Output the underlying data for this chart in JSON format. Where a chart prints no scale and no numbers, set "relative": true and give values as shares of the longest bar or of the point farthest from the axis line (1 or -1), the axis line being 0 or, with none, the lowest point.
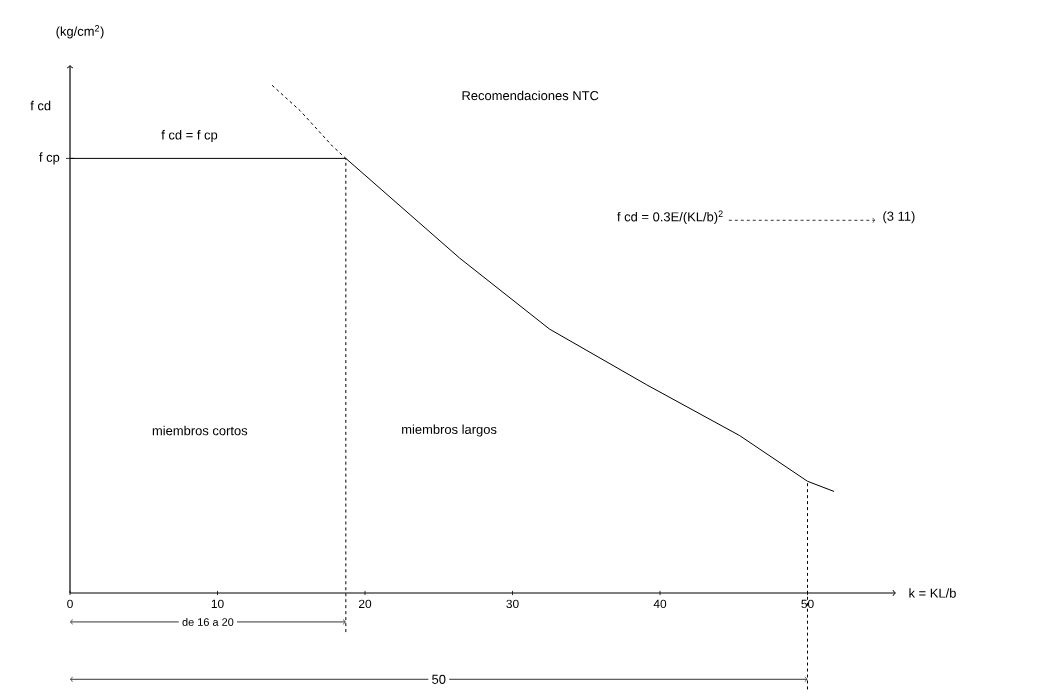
{
  "chart_data": {
    "type": "line",
    "relative": true,
    "xlabel": "k = KL/b",
    "ylabel": "(kg/cm$^{2}$)",
    "xlim": [
      0,
      56
    ],
    "xticks": [
      0,
      10,
      20,
      30,
      40,
      50
    ],
    "series": [
      {
        "color": "#000000",
        "line_style": "solid",
        "x": [
          0,
          18.7
        ],
        "values": [
          0.856,
          0.856
        ]
      },
      {
        "color": "#000000",
        "line_style": "dashed",
        "x": [
          13.7,
          15.6,
          17.8,
          18.7
        ],
        "values": [
          1.0,
          0.95,
          0.88,
          0.856
        ]
      },
      {
        "color": "#000000",
        "line_style": "solid",
        "x": [
          18.7,
          26.4,
          32.5,
          39.1,
          45.4,
          50,
          51.8
        ],
        "values": [
          0.856,
          0.66,
          0.52,
          0.41,
          0.31,
          0.22,
          0.2
        ]
      }
    ],
    "ref_lines": [
      {
        "axis": "x",
        "value": 18.7,
        "line_style": "dashed"
      },
      {
        "axis": "x",
        "value": 50,
        "line_style": "dashed"
      }
    ],
    "annotations": [
      "f cd",
      {
        "text": "f cp",
        "x": 0,
        "y": 0.856
      },
      "Recomendaciones NTC",
      "f cd = f cp",
      "f cd = 0.3E/(KL/b)$^{2}$",
      "(3 11)",
      "miembros cortos",
      "miembros largos",
      "de 16 a 20",
      "50"
    ]
  }
}
